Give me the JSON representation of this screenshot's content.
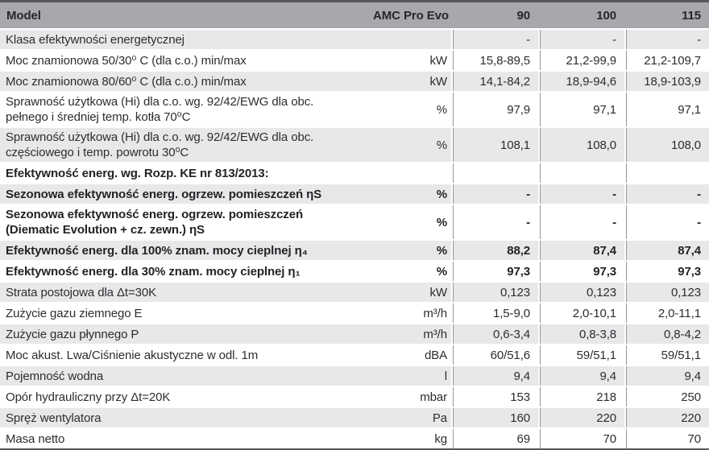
{
  "table": {
    "title_column": "Model",
    "series_name": "AMC Pro Evo",
    "model_columns": [
      "90",
      "100",
      "115"
    ],
    "rows": [
      {
        "label": "Klasa efektywności energetycznej",
        "unit": "",
        "values": [
          "-",
          "-",
          "-"
        ],
        "bold": false
      },
      {
        "label": "Moc znamionowa 50/30⁰ C (dla c.o.) min/max",
        "unit": "kW",
        "values": [
          "15,8-89,5",
          "21,2-99,9",
          "21,2-109,7"
        ],
        "bold": false
      },
      {
        "label": "Moc znamionowa 80/60⁰ C (dla c.o.) min/max",
        "unit": "kW",
        "values": [
          "14,1-84,2",
          "18,9-94,6",
          "18,9-103,9"
        ],
        "bold": false
      },
      {
        "label": "Sprawność użytkowa (Hi) dla c.o. wg. 92/42/EWG dla obc. pełnego i średniej temp. kotła 70⁰C",
        "unit": "%",
        "values": [
          "97,9",
          "97,1",
          "97,1"
        ],
        "bold": false
      },
      {
        "label": "Sprawność użytkowa (Hi) dla c.o. wg. 92/42/EWG dla obc. częściowego i temp. powrotu 30⁰C",
        "unit": "%",
        "values": [
          "108,1",
          "108,0",
          "108,0"
        ],
        "bold": false
      },
      {
        "label": "Efektywność energ. wg. Rozp. KE nr 813/2013:",
        "unit": "",
        "values": [
          "",
          "",
          ""
        ],
        "bold": true
      },
      {
        "label": "Sezonowa efektywność energ. ogrzew. pomieszczeń ηS",
        "unit": "%",
        "values": [
          "-",
          "-",
          "-"
        ],
        "bold": true
      },
      {
        "label": "Sezonowa efektywność energ. ogrzew. pomieszczeń (Diematic Evolution + cz. zewn.) ηS",
        "unit": "%",
        "values": [
          "-",
          "-",
          "-"
        ],
        "bold": true
      },
      {
        "label": "Efektywność energ. dla 100% znam. mocy cieplnej η₄",
        "unit": "%",
        "values": [
          "88,2",
          "87,4",
          "87,4"
        ],
        "bold": true
      },
      {
        "label": "Efektywność energ. dla 30% znam. mocy cieplnej η₁",
        "unit": "%",
        "values": [
          "97,3",
          "97,3",
          "97,3"
        ],
        "bold": true
      },
      {
        "label": "Strata postojowa dla Δt=30K",
        "unit": "kW",
        "values": [
          "0,123",
          "0,123",
          "0,123"
        ],
        "bold": false
      },
      {
        "label": "Zużycie gazu ziemnego E",
        "unit": "m³/h",
        "values": [
          "1,5-9,0",
          "2,0-10,1",
          "2,0-11,1"
        ],
        "bold": false
      },
      {
        "label": "Zużycie gazu płynnego P",
        "unit": "m³/h",
        "values": [
          "0,6-3,4",
          "0,8-3,8",
          "0,8-4,2"
        ],
        "bold": false
      },
      {
        "label": "Moc akust. Lwa/Ciśnienie akustyczne w odl. 1m",
        "unit": "dBA",
        "values": [
          "60/51,6",
          "59/51,1",
          "59/51,1"
        ],
        "bold": false
      },
      {
        "label": "Pojemność wodna",
        "unit": "l",
        "values": [
          "9,4",
          "9,4",
          "9,4"
        ],
        "bold": false
      },
      {
        "label": "Opór hydrauliczny przy Δt=20K",
        "unit": "mbar",
        "values": [
          "153",
          "218",
          "250"
        ],
        "bold": false
      },
      {
        "label": "Spręż wentylatora",
        "unit": "Pa",
        "values": [
          "160",
          "220",
          "220"
        ],
        "bold": false
      },
      {
        "label": "Masa netto",
        "unit": "kg",
        "values": [
          "69",
          "70",
          "70"
        ],
        "bold": false
      }
    ],
    "colors": {
      "header_bg": "#a8a8ac",
      "row_alt_bg": "#e8e8ea",
      "row_bg": "#ffffff",
      "outer_border": "#57575b",
      "column_divider": "#96969a",
      "text": "#2d2d30"
    }
  }
}
